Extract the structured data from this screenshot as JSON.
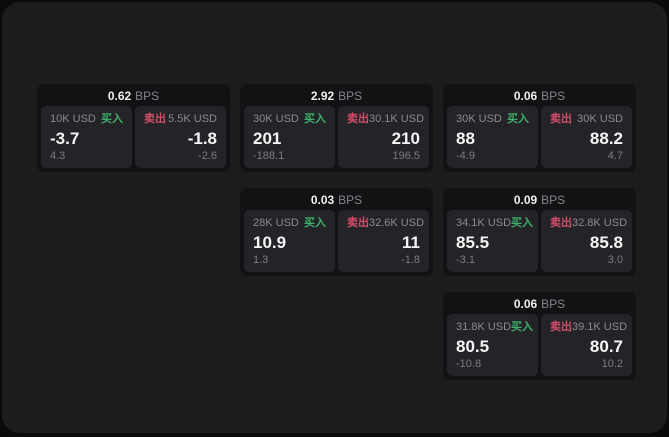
{
  "app": {
    "bps_unit": "BPS",
    "buy_label": "买入",
    "sell_label": "卖出"
  },
  "colors": {
    "buy_green": "#3fae68",
    "sell_red": "#d04e67",
    "window_bg": "#1c1c1e",
    "card_bg": "#121214",
    "panel_bg": "#242428"
  },
  "cards": [
    {
      "bps": "0.62",
      "grid": {
        "col": 1,
        "row": 1
      },
      "buy": {
        "amount": "10K USD",
        "price": "-3.7",
        "delta": "4.3"
      },
      "sell": {
        "amount": "5.5K USD",
        "price": "-1.8",
        "delta": "-2.6"
      }
    },
    {
      "bps": "2.92",
      "grid": {
        "col": 2,
        "row": 1
      },
      "buy": {
        "amount": "30K USD",
        "price": "201",
        "delta": "-188.1"
      },
      "sell": {
        "amount": "30.1K USD",
        "price": "210",
        "delta": "196.5"
      }
    },
    {
      "bps": "0.06",
      "grid": {
        "col": 3,
        "row": 1
      },
      "buy": {
        "amount": "30K USD",
        "price": "88",
        "delta": "-4.9"
      },
      "sell": {
        "amount": "30K USD",
        "price": "88.2",
        "delta": "4.7"
      }
    },
    {
      "bps": "0.03",
      "grid": {
        "col": 2,
        "row": 2
      },
      "buy": {
        "amount": "28K USD",
        "price": "10.9",
        "delta": "1.3"
      },
      "sell": {
        "amount": "32.6K USD",
        "price": "11",
        "delta": "-1.8"
      }
    },
    {
      "bps": "0.09",
      "grid": {
        "col": 3,
        "row": 2
      },
      "buy": {
        "amount": "34.1K USD",
        "price": "85.5",
        "delta": "-3.1"
      },
      "sell": {
        "amount": "32.8K USD",
        "price": "85.8",
        "delta": "3.0"
      }
    },
    {
      "bps": "0.06",
      "grid": {
        "col": 3,
        "row": 3
      },
      "buy": {
        "amount": "31.8K USD",
        "price": "80.5",
        "delta": "-10.8"
      },
      "sell": {
        "amount": "39.1K USD",
        "price": "80.7",
        "delta": "10.2"
      }
    }
  ]
}
